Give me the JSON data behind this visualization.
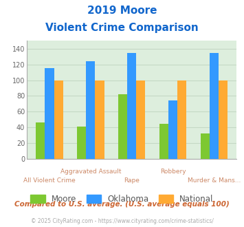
{
  "title_line1": "2019 Moore",
  "title_line2": "Violent Crime Comparison",
  "categories": [
    "All Violent Crime",
    "Aggravated Assault",
    "Rape",
    "Robbery",
    "Murder & Mans..."
  ],
  "series": {
    "Moore": [
      46,
      41,
      82,
      45,
      32
    ],
    "Oklahoma": [
      115,
      124,
      135,
      74,
      135
    ],
    "National": [
      100,
      100,
      100,
      100,
      100
    ]
  },
  "colors": {
    "Moore": "#7dc832",
    "Oklahoma": "#3399ff",
    "National": "#ffaa33"
  },
  "ylim": [
    0,
    150
  ],
  "yticks": [
    0,
    20,
    40,
    60,
    80,
    100,
    120,
    140
  ],
  "grid_color": "#c5d9c5",
  "plot_bg": "#ddeedd",
  "footer_text": "Compared to U.S. average. (U.S. average equals 100)",
  "copyright_text": "© 2025 CityRating.com - https://www.cityrating.com/crime-statistics/",
  "title_color": "#1166cc",
  "footer_color": "#cc6633",
  "copyright_color": "#aaaaaa",
  "xlabel_color": "#cc8866",
  "bar_width": 0.22
}
